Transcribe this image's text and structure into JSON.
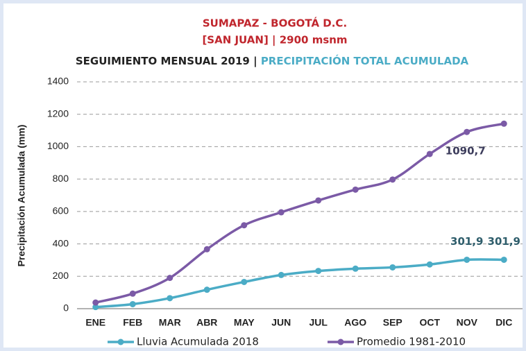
{
  "chart_data": {
    "type": "line",
    "title": [
      "SUMAPAZ - BOGOTÁ D.C.",
      "[SAN JUAN] | 2900 msnm"
    ],
    "subtitle": [
      "SEGUIMIENTO MENSUAL 2019 |",
      "PRECIPITACIÓN TOTAL ACUMULADA"
    ],
    "y_label": "Precipitación Acumulada (mm)",
    "categories": [
      "ENE",
      "FEB",
      "MAR",
      "ABR",
      "MAY",
      "JUN",
      "JUL",
      "AGO",
      "SEP",
      "OCT",
      "NOV",
      "DIC"
    ],
    "series": [
      {
        "name": "Lluvia Acumulada 2018",
        "color": "#4bacc6",
        "values": [
          10,
          28,
          65,
          117,
          165,
          208,
          233,
          247,
          255,
          273,
          301.9,
          301.9
        ],
        "value_labels": [
          null,
          null,
          null,
          null,
          null,
          null,
          null,
          null,
          null,
          null,
          "301,9",
          "301,9"
        ]
      },
      {
        "name": "Promedio 1981-2010",
        "color": "#7b5aa6",
        "values": [
          38,
          93,
          190,
          367,
          515,
          595,
          668,
          735,
          797,
          955,
          1090.7,
          1142
        ],
        "value_labels": [
          null,
          null,
          null,
          null,
          null,
          null,
          null,
          null,
          null,
          null,
          "1090,7",
          null
        ]
      }
    ],
    "ylim": [
      0,
      1400
    ],
    "yticks": [
      0,
      200,
      400,
      600,
      800,
      1000,
      1200,
      1400
    ],
    "grid": true,
    "legend": "bottom"
  }
}
